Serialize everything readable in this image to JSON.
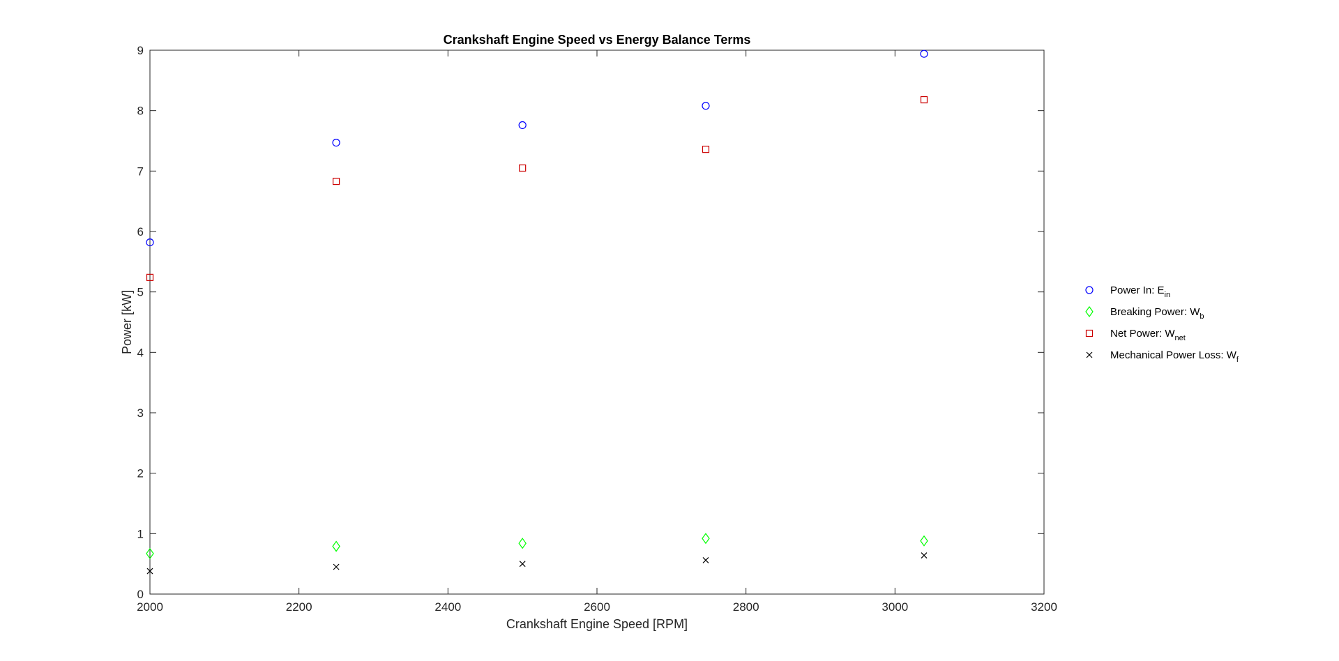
{
  "chart_data": {
    "type": "scatter",
    "title": "Crankshaft Engine Speed vs Energy Balance Terms",
    "xlabel": "Crankshaft Engine Speed [RPM]",
    "ylabel": "Power [kW]",
    "xlim": [
      2000,
      3200
    ],
    "ylim": [
      0,
      9
    ],
    "xticks": [
      2000,
      2200,
      2400,
      2600,
      2800,
      3000,
      3200
    ],
    "yticks": [
      0,
      1,
      2,
      3,
      4,
      5,
      6,
      7,
      8,
      9
    ],
    "grid": false,
    "legend_position": "outside-right",
    "x": [
      2000,
      2250,
      2500,
      2746,
      3039
    ],
    "series": [
      {
        "name_main": "Power In: E",
        "name_sub": "in",
        "marker": "circle",
        "color": "#0000ff",
        "values": [
          5.82,
          7.47,
          7.76,
          8.08,
          8.94
        ]
      },
      {
        "name_main": "Breaking Power: W",
        "name_sub": "b",
        "marker": "diamond",
        "color": "#00ff00",
        "values": [
          0.67,
          0.79,
          0.84,
          0.92,
          0.88
        ]
      },
      {
        "name_main": "Net Power: W",
        "name_sub": "net",
        "marker": "square",
        "color": "#cc0000",
        "values": [
          5.24,
          6.83,
          7.05,
          7.36,
          8.18
        ]
      },
      {
        "name_main": "Mechanical Power Loss: W",
        "name_sub": "f",
        "marker": "x",
        "color": "#000000",
        "values": [
          0.38,
          0.45,
          0.5,
          0.56,
          0.64
        ]
      }
    ]
  }
}
